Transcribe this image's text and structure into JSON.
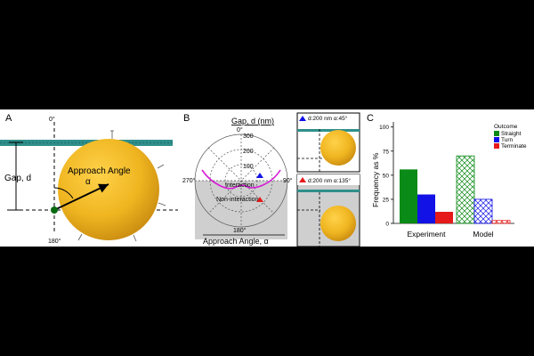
{
  "panels": {
    "a": {
      "label": "A",
      "angle_top": "0°",
      "angle_bottom": "180°",
      "gap_label": "Gap, d",
      "approach_label": "Approach Angle",
      "alpha": "α"
    },
    "b": {
      "label": "B",
      "gap_title": "Gap, d (nm)",
      "angle_title": "Approach Angle, α",
      "angle_0": "0°",
      "angle_90": "90°",
      "angle_180": "180°",
      "angle_270": "270°",
      "radial_ticks": [
        "300",
        "200",
        "100"
      ],
      "interaction": "Interaction",
      "non_interaction": "Non-interaction",
      "inset_top": "d:200 nm α:45°",
      "inset_bottom": "d:200 nm α:135°"
    },
    "c": {
      "label": "C",
      "legend_title": "Outcome",
      "legend": [
        "Straight",
        "Turn",
        "Terminate"
      ]
    }
  },
  "colors": {
    "straight": "#0a8a16",
    "turn": "#1212e6",
    "terminate": "#e61a1a",
    "sphere": "#efb520",
    "fiber": "#2f8f8a",
    "boundary": "#d61ad6",
    "shade": "#cfcfcf"
  },
  "chart_data": {
    "type": "bar",
    "categories": [
      "Experiment",
      "Model"
    ],
    "series": [
      {
        "name": "Straight",
        "values": [
          56,
          70
        ]
      },
      {
        "name": "Turn",
        "values": [
          30,
          25
        ]
      },
      {
        "name": "Terminate",
        "values": [
          12,
          3
        ]
      }
    ],
    "ylabel": "Frequency as %",
    "yticks": [
      0,
      25,
      50,
      75,
      100
    ],
    "ylim": [
      0,
      100
    ],
    "legend_position": "top-right",
    "pattern": {
      "Experiment": "solid",
      "Model": "hatched"
    }
  }
}
